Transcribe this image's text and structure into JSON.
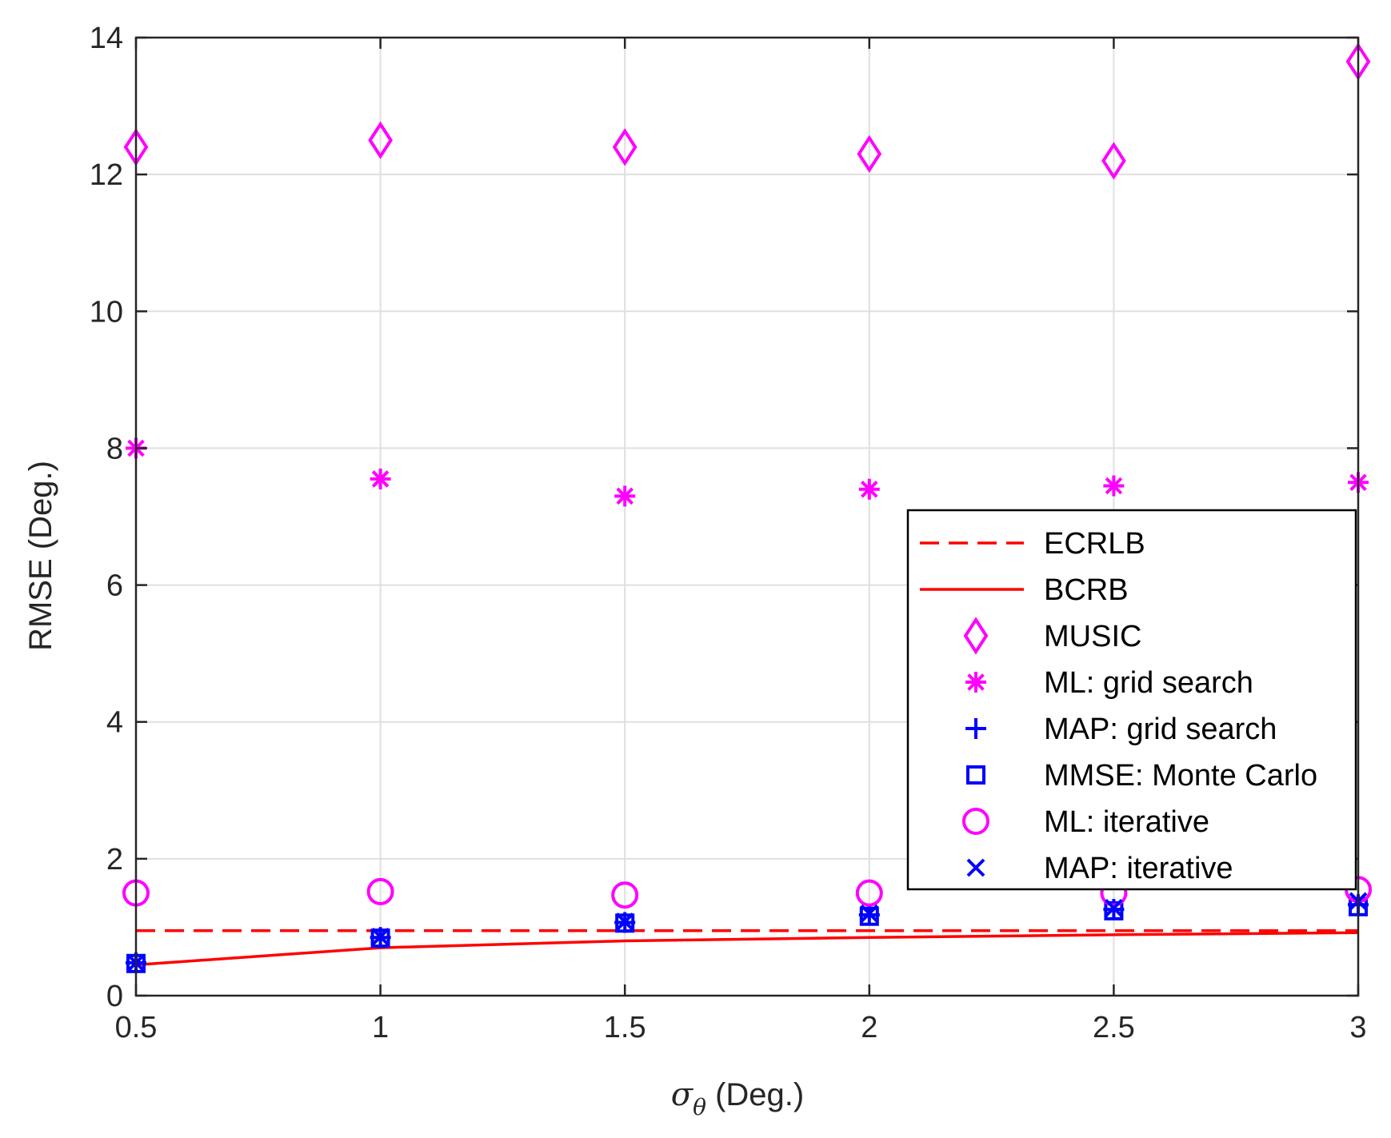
{
  "chart_data": {
    "type": "line",
    "title": "",
    "xlabel_symbol": "σ",
    "xlabel_subscript": "θ",
    "xlabel_suffix": " (Deg.)",
    "ylabel": "RMSE (Deg.)",
    "xlim": [
      0.5,
      3
    ],
    "ylim": [
      0,
      14
    ],
    "x_ticks": [
      0.5,
      1,
      1.5,
      2,
      2.5,
      3
    ],
    "x_tick_labels": [
      "0.5",
      "1",
      "1.5",
      "2",
      "2.5",
      "3"
    ],
    "y_ticks": [
      0,
      2,
      4,
      6,
      8,
      10,
      12,
      14
    ],
    "y_tick_labels": [
      "0",
      "2",
      "4",
      "6",
      "8",
      "10",
      "12",
      "14"
    ],
    "grid": true,
    "legend_position": "lower-right",
    "x": [
      0.5,
      1,
      1.5,
      2,
      2.5,
      3
    ],
    "series": [
      {
        "name": "ECRLB",
        "style": "dashed-line",
        "color": "#ff0000",
        "values": [
          0.95,
          0.95,
          0.95,
          0.95,
          0.95,
          0.95
        ]
      },
      {
        "name": "BCRB",
        "style": "solid-line",
        "color": "#ff0000",
        "values": [
          0.45,
          0.7,
          0.8,
          0.85,
          0.89,
          0.92
        ]
      },
      {
        "name": "MUSIC",
        "style": "diamond",
        "color": "#ff00ff",
        "values": [
          12.4,
          12.5,
          12.4,
          12.3,
          12.2,
          13.65
        ]
      },
      {
        "name": "ML: grid search",
        "style": "asterisk",
        "color": "#ff00ff",
        "values": [
          8.0,
          7.55,
          7.3,
          7.4,
          7.45,
          7.5
        ]
      },
      {
        "name": "MAP: grid search",
        "style": "plus",
        "color": "#0000ff",
        "values": [
          0.48,
          0.85,
          1.07,
          1.18,
          1.26,
          1.33
        ]
      },
      {
        "name": "MMSE: Monte Carlo",
        "style": "square",
        "color": "#0000ff",
        "values": [
          0.47,
          0.84,
          1.06,
          1.16,
          1.24,
          1.3
        ]
      },
      {
        "name": "ML: iterative",
        "style": "circle",
        "color": "#ff00ff",
        "values": [
          1.5,
          1.52,
          1.47,
          1.5,
          1.5,
          1.55
        ]
      },
      {
        "name": "MAP: iterative",
        "style": "cross",
        "color": "#0000ff",
        "values": [
          0.48,
          0.86,
          1.08,
          1.2,
          1.28,
          1.38
        ]
      }
    ]
  }
}
